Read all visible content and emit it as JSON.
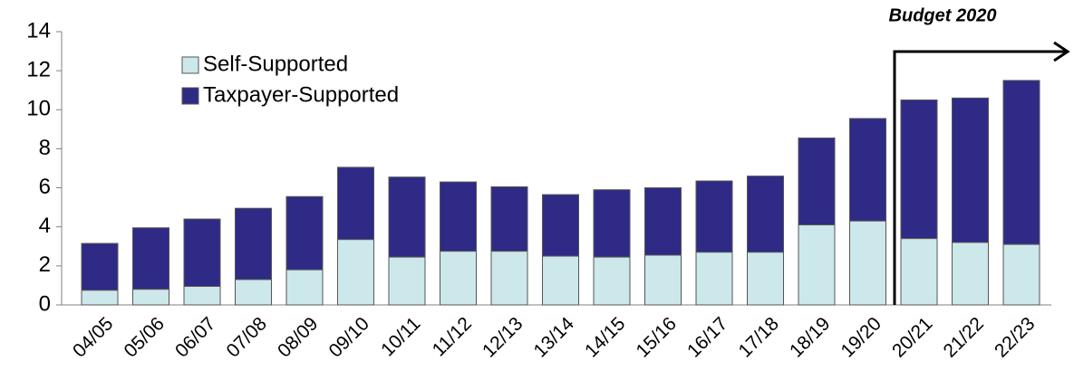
{
  "chart_data": {
    "type": "stacked_bar",
    "annotation": "Budget 2020",
    "categories": [
      "04/05",
      "05/06",
      "06/07",
      "07/08",
      "08/09",
      "09/10",
      "10/11",
      "11/12",
      "12/13",
      "13/14",
      "14/15",
      "15/16",
      "16/17",
      "17/18",
      "18/19",
      "19/20",
      "20/21",
      "21/22",
      "22/23"
    ],
    "series": [
      {
        "name": "Self-Supported",
        "color": "#cce8ea",
        "values": [
          0.75,
          0.8,
          0.95,
          1.3,
          1.8,
          3.35,
          2.45,
          2.75,
          2.75,
          2.5,
          2.45,
          2.55,
          2.7,
          2.7,
          4.1,
          4.3,
          3.4,
          3.2,
          3.1
        ]
      },
      {
        "name": "Taxpayer-Supported",
        "color": "#2e2a86",
        "values": [
          2.4,
          3.15,
          3.45,
          3.65,
          3.75,
          3.7,
          4.1,
          3.55,
          3.3,
          3.15,
          3.45,
          3.45,
          3.65,
          3.9,
          4.45,
          5.25,
          7.1,
          7.4,
          8.4
        ]
      }
    ],
    "ylim": [
      0,
      14
    ],
    "yticks": [
      0,
      2,
      4,
      6,
      8,
      10,
      12,
      14
    ],
    "legend": "upper left"
  }
}
